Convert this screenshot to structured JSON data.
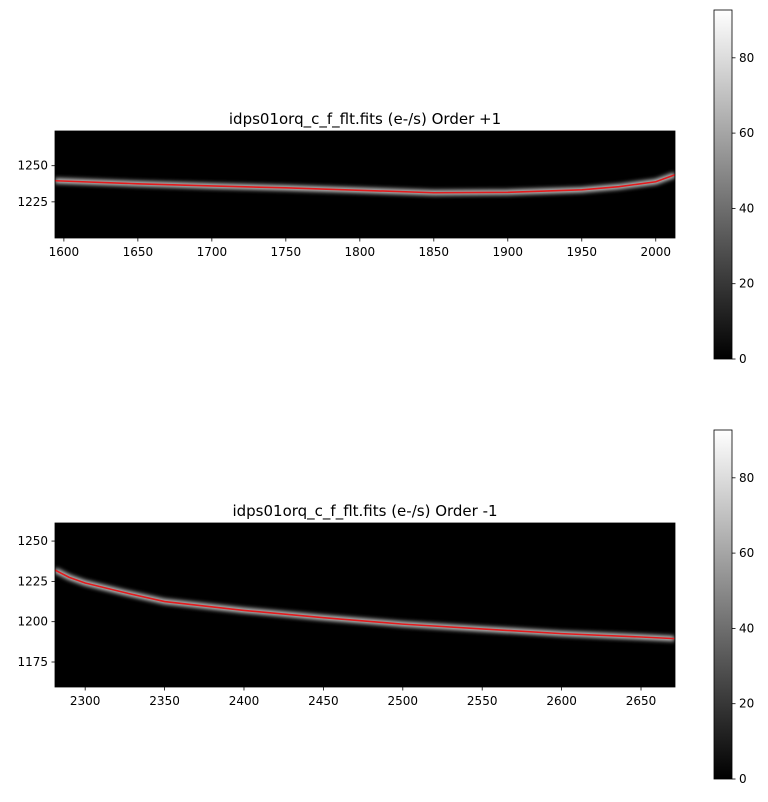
{
  "chart_data": [
    {
      "type": "image",
      "title": "idps01orq_c_f_flt.fits (e-/s) Order +1",
      "cmap": "gray",
      "xlim": [
        1594,
        2013
      ],
      "xticks": [
        1600,
        1650,
        1700,
        1750,
        1800,
        1850,
        1900,
        1950,
        2000
      ],
      "ylim": [
        1200,
        1274
      ],
      "yticks": [
        1225,
        1250
      ],
      "trace": {
        "color": "#e41a1c",
        "x": [
          1594,
          1650,
          1700,
          1750,
          1800,
          1850,
          1900,
          1950,
          1975,
          2000,
          2013
        ],
        "y": [
          1239.6,
          1237.5,
          1236,
          1234.7,
          1233,
          1231.3,
          1231.6,
          1233.3,
          1235.5,
          1238.9,
          1243.7
        ]
      },
      "colorbar": {
        "lim": [
          0,
          92.7
        ],
        "ticks": [
          0,
          20,
          40,
          60,
          80
        ]
      }
    },
    {
      "type": "image",
      "title": "idps01orq_c_f_flt.fits (e-/s) Order -1",
      "cmap": "gray",
      "xlim": [
        2281,
        2671.4
      ],
      "xticks": [
        2300,
        2350,
        2400,
        2450,
        2500,
        2550,
        2600,
        2650
      ],
      "ylim": [
        1159.5,
        1261.2
      ],
      "yticks": [
        1175,
        1200,
        1225,
        1250
      ],
      "trace": {
        "color": "#e41a1c",
        "x": [
          2281,
          2290,
          2300,
          2325,
          2350,
          2400,
          2450,
          2500,
          2550,
          2600,
          2650,
          2671
        ],
        "y": [
          1232,
          1227.5,
          1224,
          1218,
          1212.5,
          1207,
          1202.5,
          1198.5,
          1195.5,
          1192.6,
          1190.5,
          1189.5
        ]
      },
      "colorbar": {
        "lim": [
          0,
          92.7
        ],
        "ticks": [
          0,
          20,
          40,
          60,
          80
        ]
      }
    }
  ]
}
